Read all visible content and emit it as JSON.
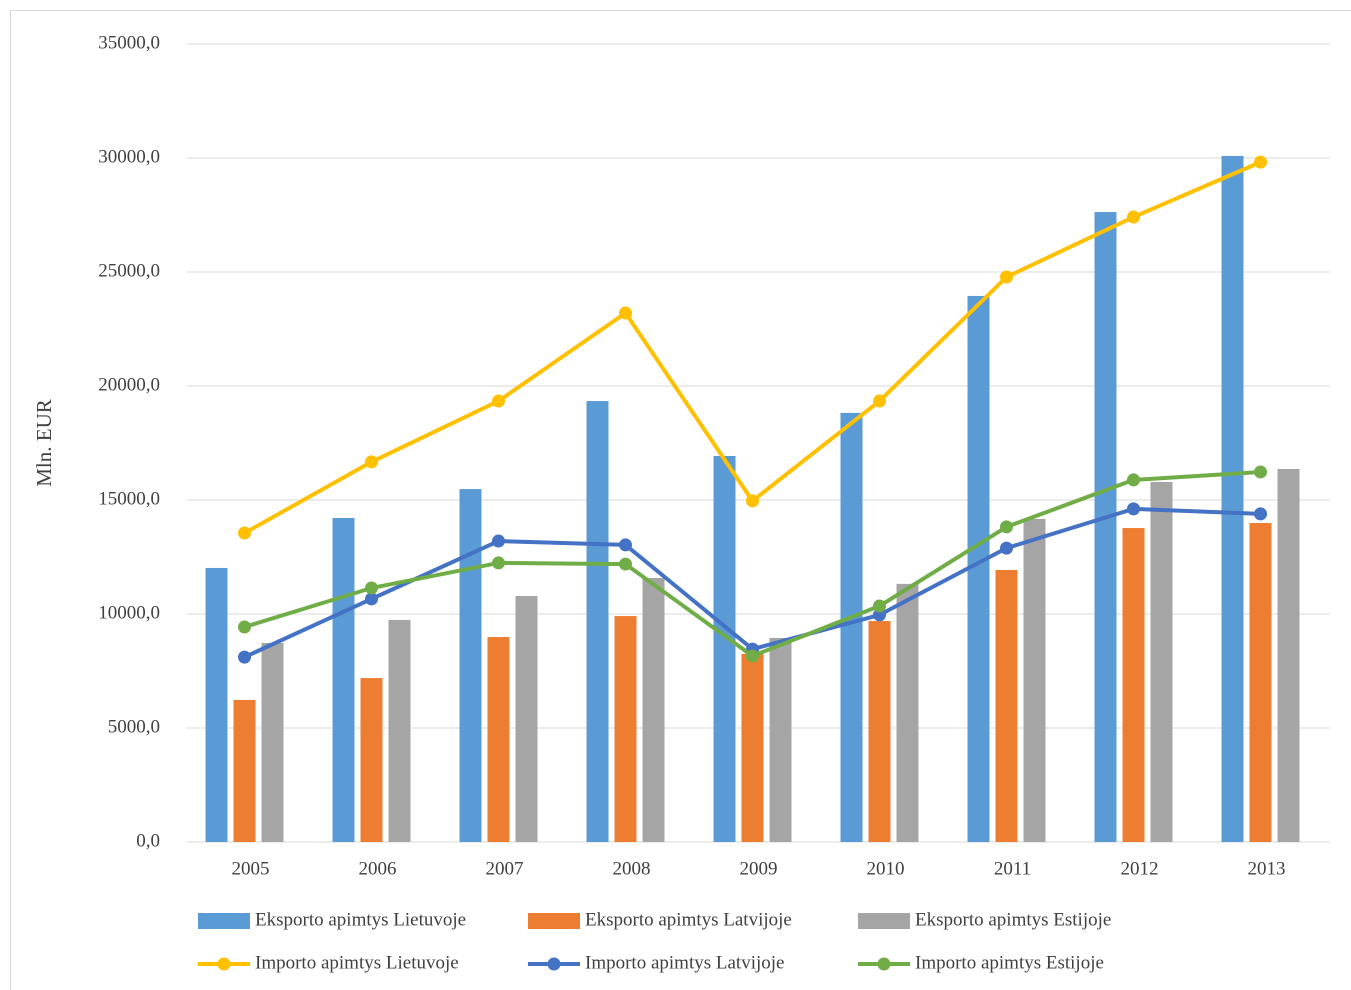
{
  "chart_data": {
    "type": "bar",
    "y_label": "Mln. EUR",
    "categories": [
      "2005",
      "2006",
      "2007",
      "2008",
      "2009",
      "2010",
      "2011",
      "2012",
      "2013"
    ],
    "ylim": [
      0,
      35000
    ],
    "yticks": [
      {
        "value": 0,
        "label": "0,0"
      },
      {
        "value": 5000,
        "label": "5000,0"
      },
      {
        "value": 10000,
        "label": "10000,0"
      },
      {
        "value": 15000,
        "label": "15000,0"
      },
      {
        "value": 20000,
        "label": "20000,0"
      },
      {
        "value": 25000,
        "label": "25000,0"
      },
      {
        "value": 30000,
        "label": "30000,0"
      },
      {
        "value": 35000,
        "label": "35000,0"
      }
    ],
    "grid": true,
    "legend": "bottom",
    "series": [
      {
        "name": "Eksporto apimtys Lietuvoje",
        "type": "bar",
        "color": "#5b9bd5",
        "values": [
          12020,
          14210,
          15480,
          19340,
          16930,
          18820,
          23950,
          27630,
          30090
        ]
      },
      {
        "name": "Eksporto apimtys Latvijoje",
        "type": "bar",
        "color": "#ed7d31",
        "values": [
          6230,
          7190,
          8990,
          9910,
          8250,
          9690,
          11930,
          13770,
          13990
        ]
      },
      {
        "name": "Eksporto apimtys Estijoje",
        "type": "bar",
        "color": "#a5a5a5",
        "values": [
          8730,
          9740,
          10790,
          11580,
          8950,
          11320,
          14170,
          15790,
          16360
        ]
      },
      {
        "name": "Importo apimtys Lietuvoje",
        "type": "line",
        "color": "#ffc000",
        "values": [
          13550,
          16670,
          19340,
          23200,
          14960,
          19340,
          24780,
          27410,
          29820
        ]
      },
      {
        "name": "Importo apimtys Latvijoje",
        "type": "line",
        "color": "#4472c4",
        "values": [
          8110,
          10660,
          13200,
          13030,
          8460,
          9960,
          12890,
          14610,
          14390
        ]
      },
      {
        "name": "Importo apimtys Estijoje",
        "type": "line",
        "color": "#70ad47",
        "values": [
          9430,
          11140,
          12240,
          12190,
          8160,
          10350,
          13820,
          15880,
          16230
        ]
      }
    ]
  }
}
